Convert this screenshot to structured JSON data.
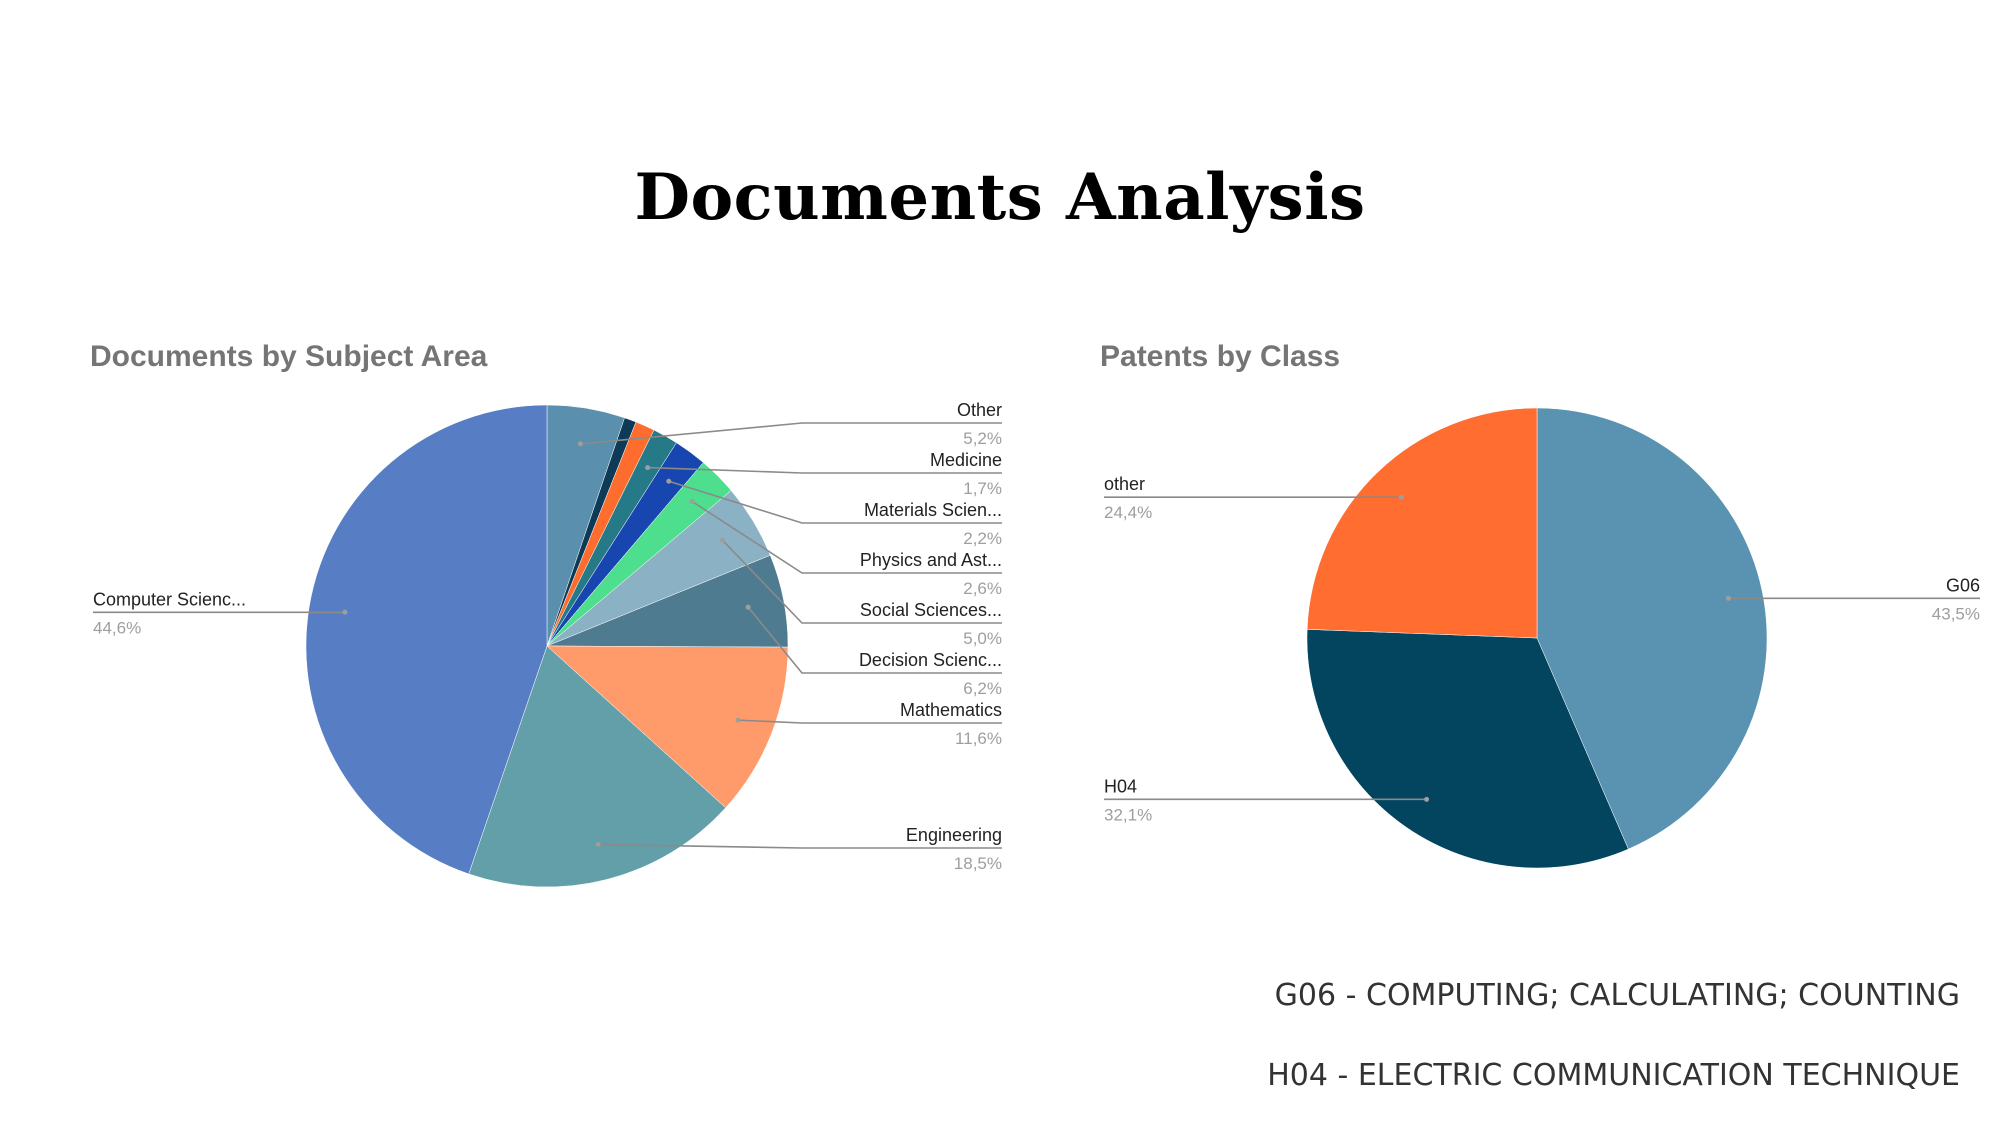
{
  "page": {
    "title": "Documents Analysis"
  },
  "chart_data": [
    {
      "type": "pie",
      "title": "Documents by Subject Area",
      "slices": [
        {
          "label": "Other",
          "pct": "5,2%",
          "value": 5.2,
          "color": "#5a8fad",
          "side": "right"
        },
        {
          "label": "",
          "pct": "",
          "value": 0.8,
          "color": "#0d3b57",
          "side": "none"
        },
        {
          "label": "",
          "pct": "",
          "value": 1.3,
          "color": "#ff6d2e",
          "side": "none"
        },
        {
          "label": "Medicine",
          "pct": "1,7%",
          "value": 1.7,
          "color": "#267a87",
          "side": "right"
        },
        {
          "label": "Materials Scien...",
          "pct": "2,2%",
          "value": 2.2,
          "color": "#1846b0",
          "side": "right"
        },
        {
          "label": "Physics and Ast...",
          "pct": "2,6%",
          "value": 2.6,
          "color": "#4ddf8d",
          "side": "right"
        },
        {
          "label": "Social Sciences...",
          "pct": "5,0%",
          "value": 5.0,
          "color": "#8bb1c4",
          "side": "right"
        },
        {
          "label": "Decision Scienc...",
          "pct": "6,2%",
          "value": 6.2,
          "color": "#4f7b90",
          "side": "right"
        },
        {
          "label": "Mathematics",
          "pct": "11,6%",
          "value": 11.6,
          "color": "#ff9a6b",
          "side": "right"
        },
        {
          "label": "Engineering",
          "pct": "18,5%",
          "value": 18.5,
          "color": "#629fa8",
          "side": "right"
        },
        {
          "label": "Computer Scienc...",
          "pct": "44,6%",
          "value": 44.6,
          "color": "#577ec4",
          "side": "left"
        }
      ]
    },
    {
      "type": "pie",
      "title": "Patents by Class",
      "slices": [
        {
          "label": "G06",
          "pct": "43,5%",
          "value": 43.5,
          "color": "#5a93b1",
          "side": "right"
        },
        {
          "label": "H04",
          "pct": "32,1%",
          "value": 32.1,
          "color": "#03455e",
          "side": "left"
        },
        {
          "label": "other",
          "pct": "24,4%",
          "value": 24.4,
          "color": "#ff6d31",
          "side": "left"
        }
      ]
    }
  ],
  "legend": {
    "g06": "G06 - COMPUTING; CALCULATING; COUNTING",
    "h04": "H04 - ELECTRIC COMMUNICATION TECHNIQUE"
  }
}
